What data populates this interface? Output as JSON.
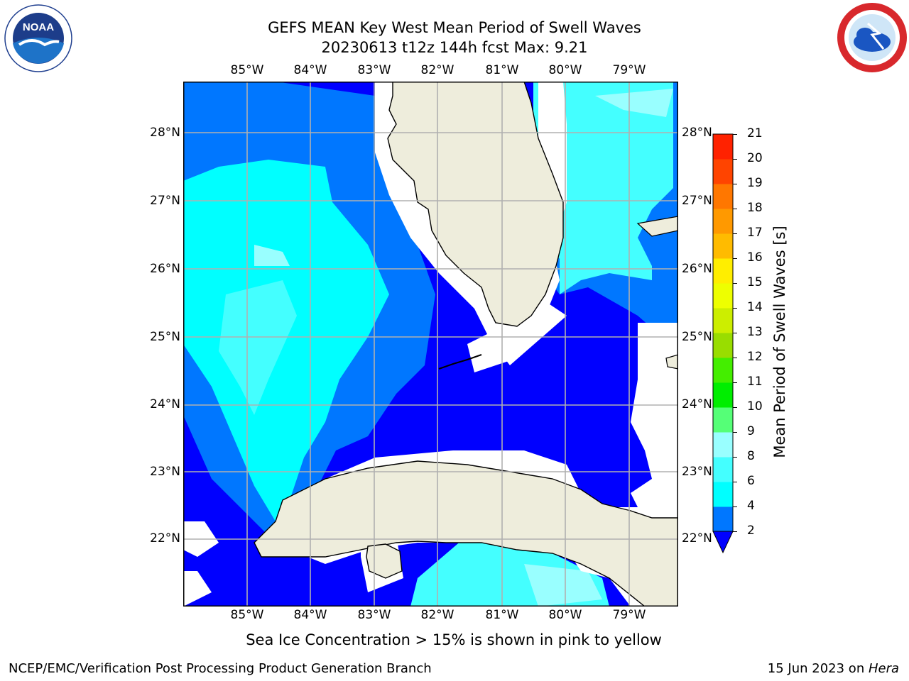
{
  "header": {
    "title_line1": "GEFS MEAN Key West Mean Period of Swell Waves",
    "title_line2": "20230613 t12z 144h fcst   Max: 9.21"
  },
  "logos": {
    "left_text": "NOAA",
    "left_ring_text": "NATIONAL OCEANIC AND ATMOSPHERIC ADMINISTRATION · U.S. DEPARTMENT OF COMMERCE",
    "right_ring_text": "NATIONAL WEATHER SERVICE"
  },
  "map": {
    "lon_labels": [
      "85°W",
      "84°W",
      "83°W",
      "82°W",
      "81°W",
      "80°W",
      "79°W"
    ],
    "lat_labels": [
      "28°N",
      "27°N",
      "26°N",
      "25°N",
      "24°N",
      "23°N",
      "22°N"
    ],
    "colors": {
      "land": "#eeeddc",
      "no_data": "#ffffff",
      "grid": "#b0b0b0",
      "coast": "#000000"
    }
  },
  "colorbar": {
    "label": "Mean Period of Swell Waves [s]",
    "ticks": [
      "2",
      "4",
      "6",
      "8",
      "9",
      "10",
      "11",
      "12",
      "13",
      "14",
      "15",
      "16",
      "17",
      "18",
      "19",
      "20",
      "21"
    ],
    "colors": [
      "#0000ff",
      "#0077ff",
      "#00ffff",
      "#44ffff",
      "#99ffff",
      "#55ff77",
      "#00ee00",
      "#44ee00",
      "#99dd00",
      "#ccee00",
      "#eeff00",
      "#ffee00",
      "#ffbb00",
      "#ff9900",
      "#ff7700",
      "#ff4400",
      "#ff2200",
      "#ff0000"
    ]
  },
  "note": "Sea Ice Concentration > 15% is shown in pink to yellow",
  "footer": {
    "left": "NCEP/EMC/Verification Post Processing Product Generation Branch",
    "right_date": "15 Jun 2023 on ",
    "right_host": "Hera"
  }
}
